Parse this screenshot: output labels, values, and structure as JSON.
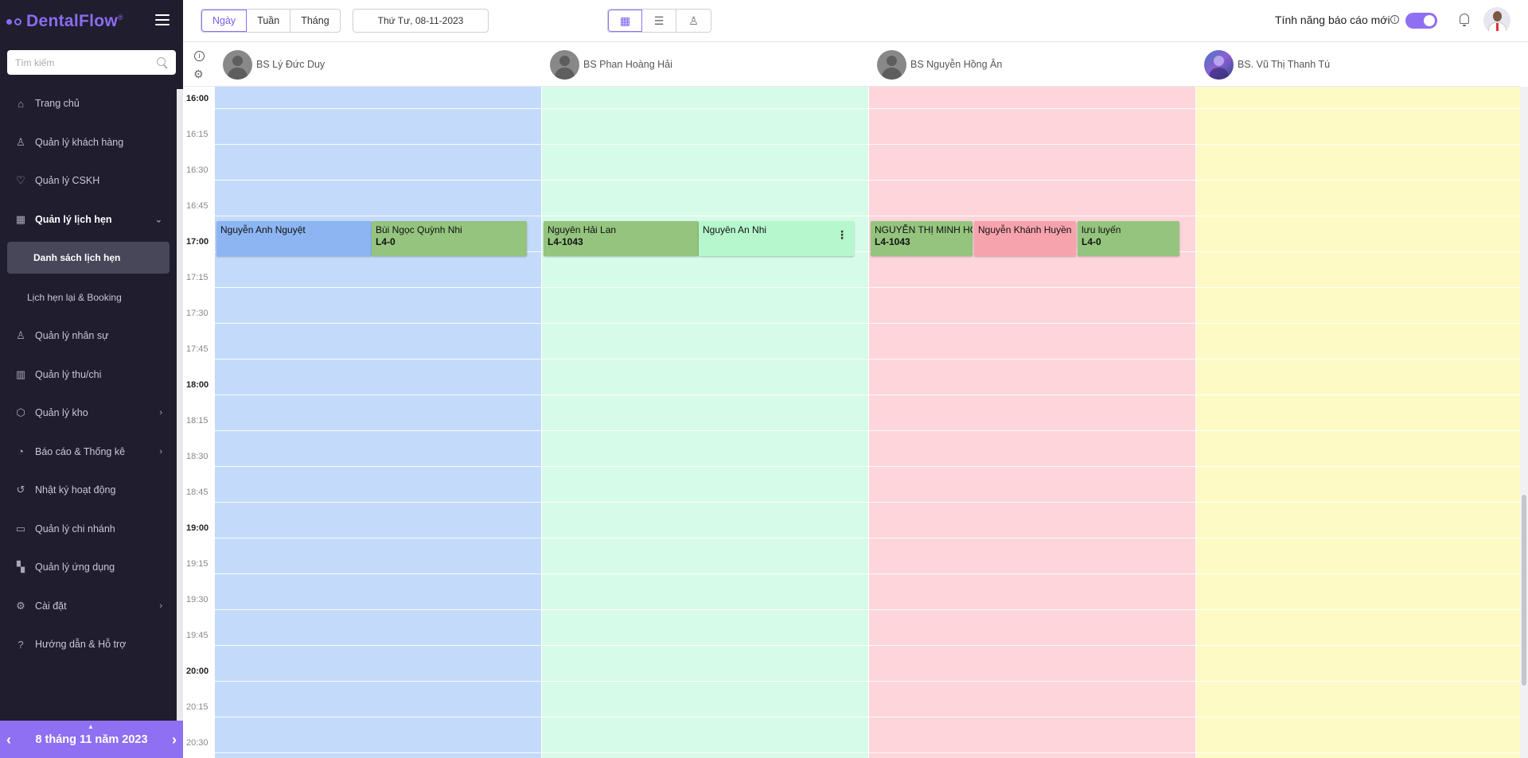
{
  "app": {
    "logo_text": "DentalFlow",
    "logo_mark": "®"
  },
  "sidebar": {
    "search_placeholder": "Tìm kiếm",
    "items": [
      {
        "label": "Trang chủ",
        "icon": "home-icon",
        "glyph": "⌂"
      },
      {
        "label": "Quản lý khách hàng",
        "icon": "user-icon",
        "glyph": "♙"
      },
      {
        "label": "Quản lý CSKH",
        "icon": "hand-heart-icon",
        "glyph": "♡"
      },
      {
        "label": "Quản lý lịch hẹn",
        "icon": "calendar-icon",
        "glyph": "▦",
        "active": true,
        "expanded": true
      },
      {
        "label": "Quản lý nhân sự",
        "icon": "users-icon",
        "glyph": "♙"
      },
      {
        "label": "Quản lý thu/chi",
        "icon": "chart-icon",
        "glyph": "▥"
      },
      {
        "label": "Quản lý kho",
        "icon": "box-icon",
        "glyph": "⬡",
        "chevron": true
      },
      {
        "label": "Báo cáo & Thống kê",
        "icon": "pie-chart-icon",
        "glyph": "◔",
        "chevron": true
      },
      {
        "label": "Nhật ký hoạt động",
        "icon": "history-icon",
        "glyph": "↺"
      },
      {
        "label": "Quản lý chi nhánh",
        "icon": "briefcase-icon",
        "glyph": "▭"
      },
      {
        "label": "Quản lý ứng dụng",
        "icon": "apps-icon",
        "glyph": "▚"
      },
      {
        "label": "Cài đặt",
        "icon": "gear-icon",
        "glyph": "⚙",
        "chevron": true
      },
      {
        "label": "Hướng dẫn & Hỗ trợ",
        "icon": "help-icon",
        "glyph": "?"
      }
    ],
    "subitems": [
      {
        "label": "Danh sách lịch hẹn",
        "selected": true
      },
      {
        "label": "Lịch hẹn lại & Booking",
        "selected": false
      }
    ],
    "footer_date": "8 tháng 11 năm 2023"
  },
  "topbar": {
    "view_tabs": [
      "Ngày",
      "Tuần",
      "Tháng"
    ],
    "active_view": "Ngày",
    "date_value": "Thứ Tư, 08-11-2023",
    "report_label": "Tính năng báo cáo mới",
    "toggle_on": true
  },
  "calendar": {
    "doctors": [
      {
        "name": "BS Lý Đức Duy",
        "color": "#c3dafa",
        "photo": false
      },
      {
        "name": "BS Phan Hoàng Hải",
        "color": "#d7fbe9",
        "photo": false
      },
      {
        "name": "BS Nguyễn Hồng Ân",
        "color": "#fdd5da",
        "photo": false
      },
      {
        "name": "BS. Vũ Thị Thanh Tú",
        "color": "#fefac6",
        "photo": true
      }
    ],
    "time_slots": [
      "16:00",
      "16:15",
      "16:30",
      "16:45",
      "17:00",
      "17:15",
      "17:30",
      "17:45",
      "18:00",
      "18:15",
      "18:30",
      "18:45",
      "19:00",
      "19:15",
      "19:30",
      "19:45",
      "20:00",
      "20:15",
      "20:30"
    ],
    "start_time": "16:00",
    "appointments": [
      {
        "doctor": 0,
        "name": "Nguyễn Anh Nguyệt",
        "code": "",
        "start": "16:45",
        "lane": 0,
        "lanes": 2,
        "color": "#8db5f2"
      },
      {
        "doctor": 0,
        "name": "Bùi Ngọc Quỳnh Nhi",
        "code": "L4-0",
        "start": "16:45",
        "lane": 1,
        "lanes": 2,
        "color": "#94c47e"
      },
      {
        "doctor": 1,
        "name": "Nguyên Hải Lan",
        "code": "L4-1043",
        "start": "16:45",
        "lane": 0,
        "lanes": 2,
        "color": "#94c47e"
      },
      {
        "doctor": 1,
        "name": "Nguyên An Nhi",
        "code": "",
        "start": "16:45",
        "lane": 1,
        "lanes": 2,
        "color": "#b6f7cd",
        "more": true
      },
      {
        "doctor": 2,
        "name": "NGUYỄN THỊ MINH HOÀ",
        "code": "L4-1043",
        "start": "16:45",
        "lane": 0,
        "lanes": 3,
        "color": "#94c47e"
      },
      {
        "doctor": 2,
        "name": "Nguyễn Khánh Huyền",
        "code": "",
        "start": "16:45",
        "lane": 1,
        "lanes": 3,
        "color": "#f7a3ad"
      },
      {
        "doctor": 2,
        "name": "lưu luyến",
        "code": "L4-0",
        "start": "16:45",
        "lane": 2,
        "lanes": 3,
        "color": "#94c47e"
      }
    ]
  }
}
